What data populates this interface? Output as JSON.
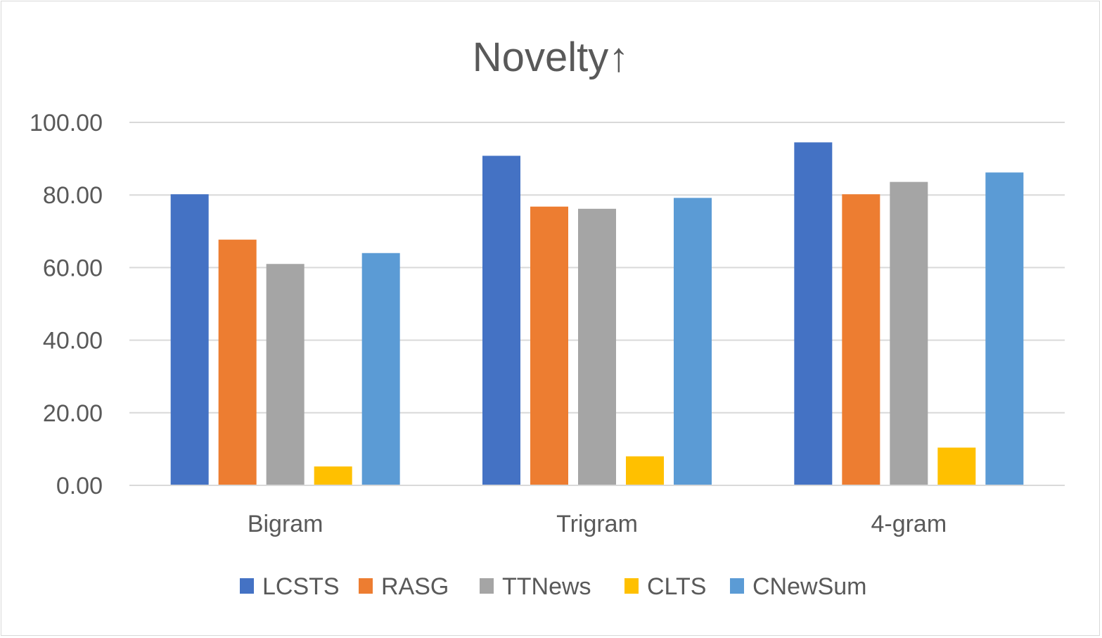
{
  "chart_data": {
    "type": "bar",
    "title": "Novelty↑",
    "xlabel": "",
    "ylabel": "",
    "categories": [
      "Bigram",
      "Trigram",
      "4-gram"
    ],
    "series": [
      {
        "name": "LCSTS",
        "color": "#4472c4",
        "values": [
          80.2,
          90.8,
          94.5
        ]
      },
      {
        "name": "RASG",
        "color": "#ed7d31",
        "values": [
          67.7,
          76.8,
          80.2
        ]
      },
      {
        "name": "TTNews",
        "color": "#a5a5a5",
        "values": [
          61.0,
          76.2,
          83.6
        ]
      },
      {
        "name": "CLTS",
        "color": "#ffc000",
        "values": [
          5.2,
          8.0,
          10.4
        ]
      },
      {
        "name": "CNewSum",
        "color": "#5b9bd5",
        "values": [
          64.0,
          79.2,
          86.2
        ]
      }
    ],
    "ylim": [
      0,
      100
    ],
    "yticks": [
      "0.00",
      "20.00",
      "40.00",
      "60.00",
      "80.00",
      "100.00"
    ],
    "ytick_values": [
      0,
      20,
      40,
      60,
      80,
      100
    ],
    "grid": true,
    "legend_position": "bottom"
  }
}
